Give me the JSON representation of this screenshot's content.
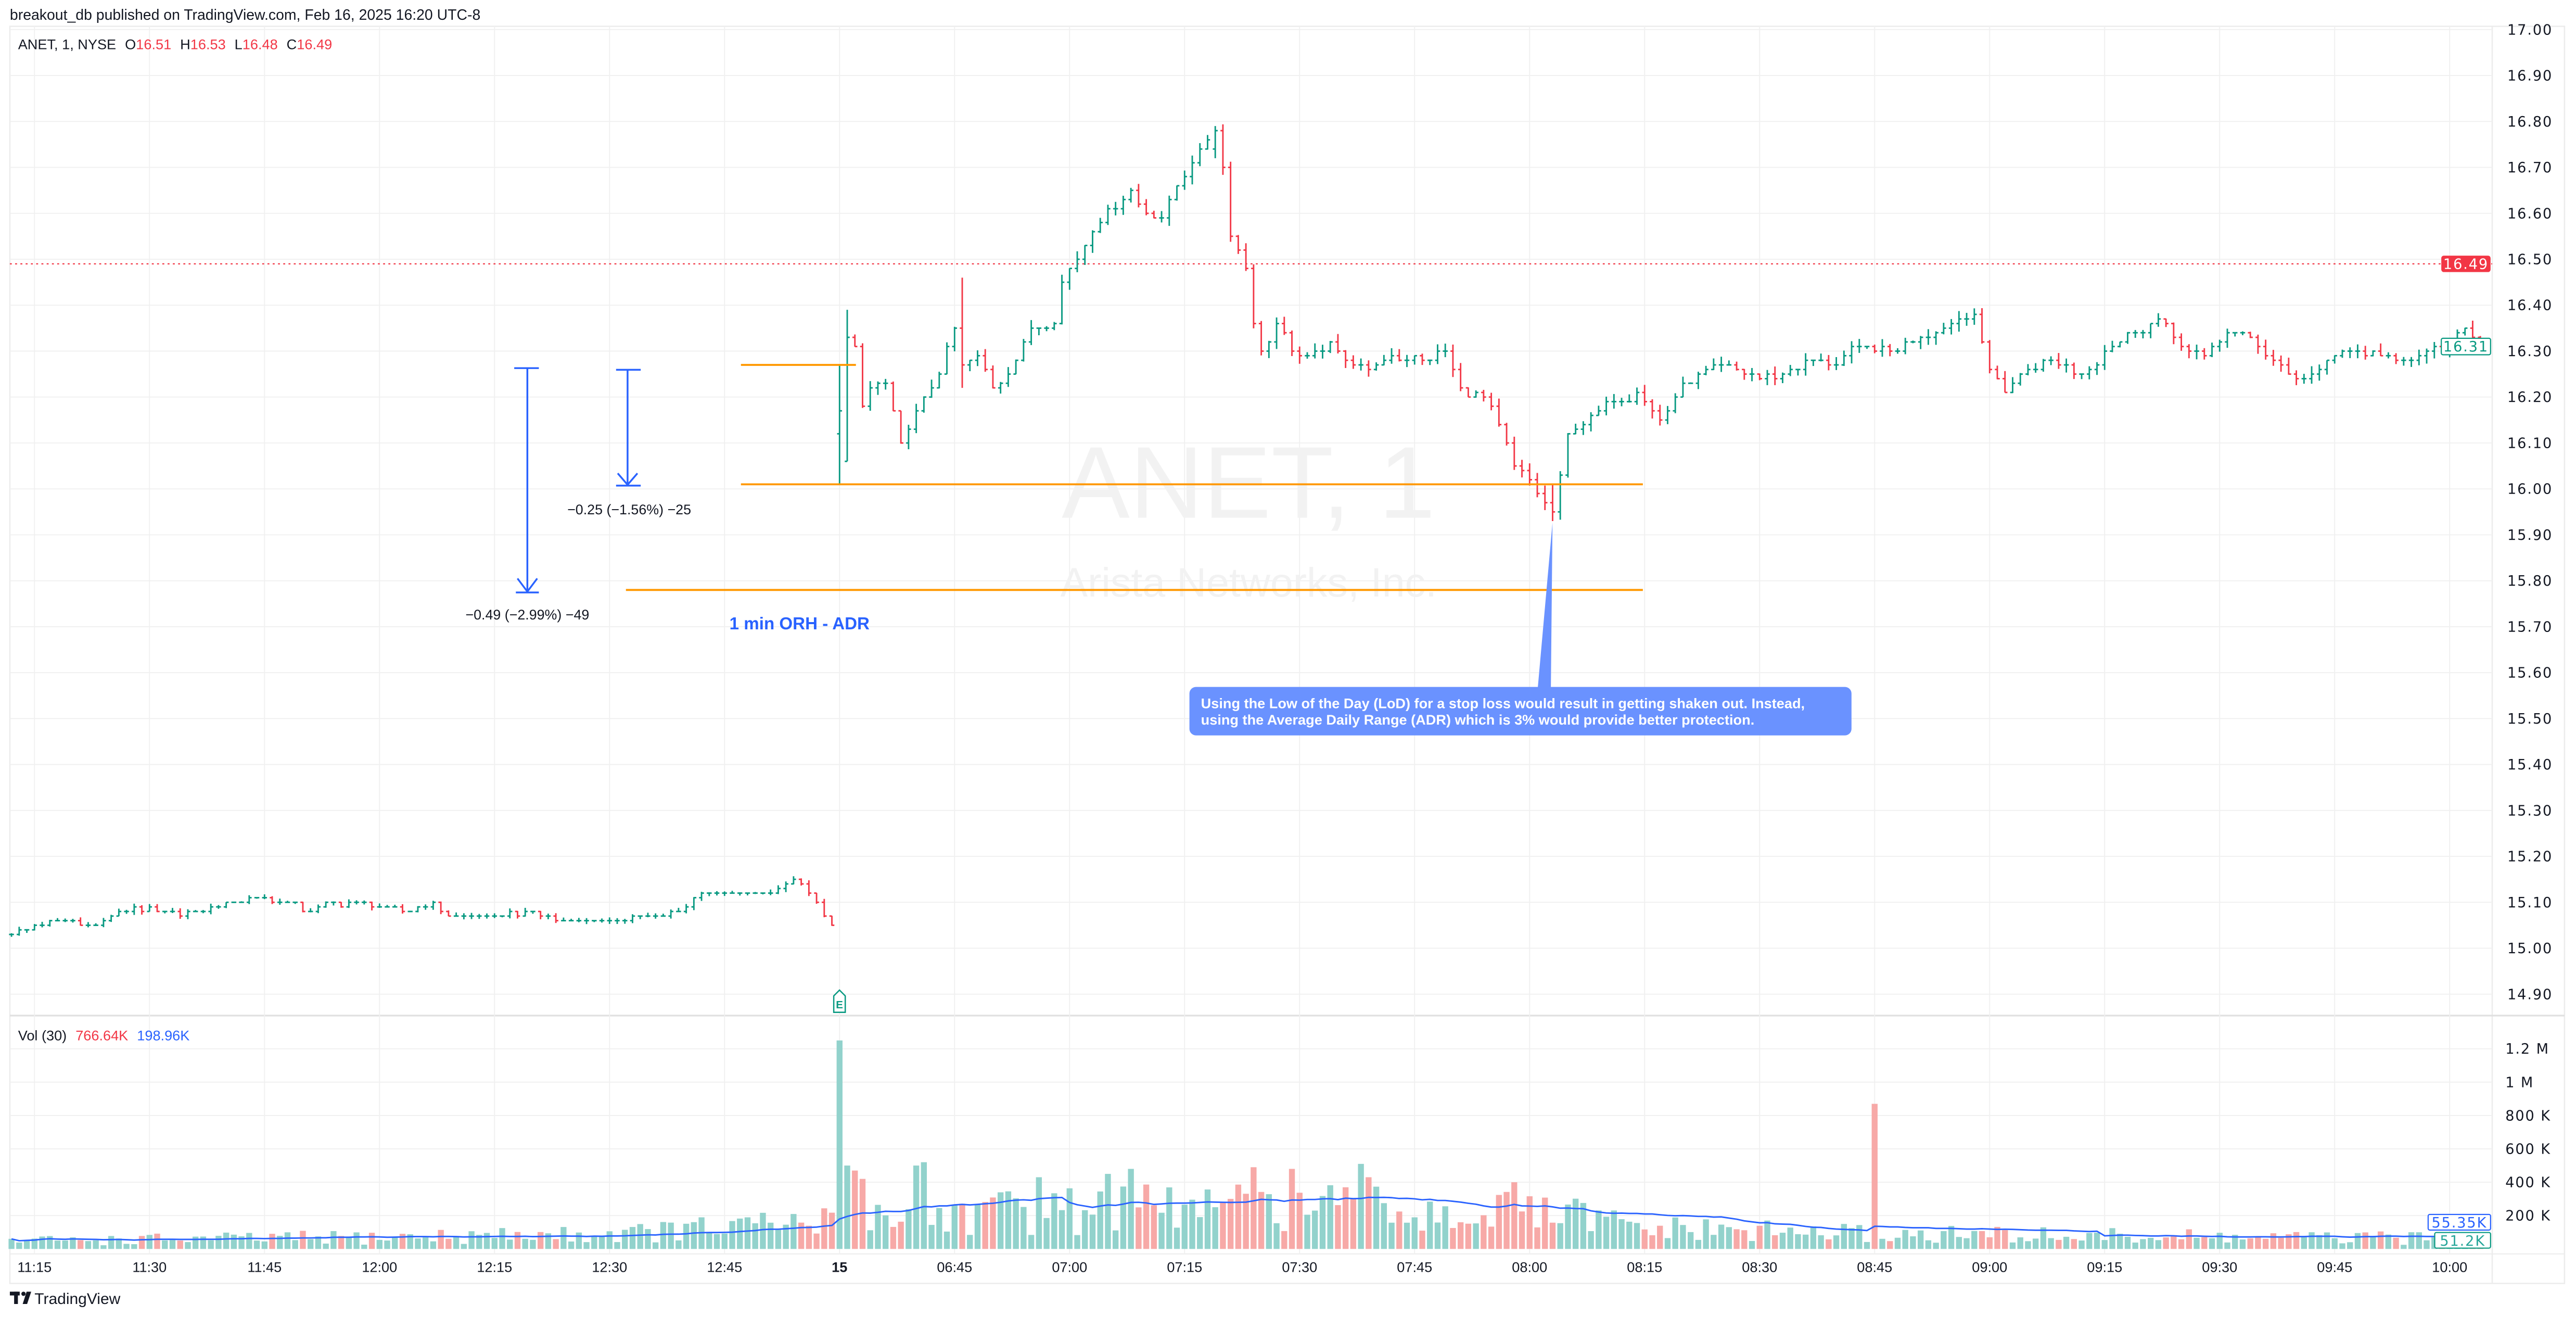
{
  "header": {
    "published": "breakout_db published on TradingView.com, Feb 16, 2025 16:20 UTC-8"
  },
  "legend": {
    "symbol": "ANET, 1, NYSE",
    "o_label": "O",
    "o": "16.51",
    "h_label": "H",
    "h": "16.53",
    "l_label": "L",
    "l": "16.48",
    "c_label": "C",
    "c": "16.49"
  },
  "watermark": {
    "symbol": "ANET, 1",
    "name": "Arista Networks, Inc."
  },
  "volume_legend": {
    "label": "Vol (30)",
    "value": "766.64K",
    "ma": "198.96K"
  },
  "price_labels": {
    "last": "16.49",
    "current": "16.31"
  },
  "volume_labels": {
    "ma": "55.35K",
    "current": "51.2K"
  },
  "annotations": {
    "measure_short": "−0.25 (−1.56%) −25",
    "measure_long": "−0.49 (−2.99%) −49",
    "orh_adr_label": "1 min ORH - ADR",
    "callout": [
      "Using the Low of the Day (LoD) for a stop loss would result in getting shaken out. Instead,",
      "using the Average Daily Range (ADR) which is 3% would provide better protection."
    ],
    "earnings_marker": "E"
  },
  "footer": {
    "brand": "TradingView"
  },
  "colors": {
    "up": "#089981",
    "down": "#F23645",
    "vol_up": "#92D2CC",
    "vol_down": "#F7A9A7",
    "vol_ma": "#2962FF",
    "level_line": "#FF9800",
    "measure": "#2962FF",
    "callout_bg": "#6A92FF"
  },
  "chart_data": {
    "type": "ohlc",
    "symbol": "ANET",
    "interval": "1",
    "exchange": "NYSE",
    "y_ticks": [
      "17.00",
      "16.90",
      "16.80",
      "16.70",
      "16.60",
      "16.50",
      "16.40",
      "16.30",
      "16.20",
      "16.10",
      "16.00",
      "15.90",
      "15.80",
      "15.70",
      "15.60",
      "15.50",
      "15.40",
      "15.30",
      "15.20",
      "15.10",
      "15.00",
      "14.90"
    ],
    "ylim": [
      14.9,
      17.0
    ],
    "x_ticks": [
      {
        "t": "11:15",
        "label": "11:15"
      },
      {
        "t": "11:30",
        "label": "11:30"
      },
      {
        "t": "11:45",
        "label": "11:45"
      },
      {
        "t": "12:00",
        "label": "12:00"
      },
      {
        "t": "12:15",
        "label": "12:15"
      },
      {
        "t": "12:30",
        "label": "12:30"
      },
      {
        "t": "12:45",
        "label": "12:45"
      },
      {
        "t": "06:30",
        "label": "15",
        "bold": true
      },
      {
        "t": "06:45",
        "label": "06:45"
      },
      {
        "t": "07:00",
        "label": "07:00"
      },
      {
        "t": "07:15",
        "label": "07:15"
      },
      {
        "t": "07:30",
        "label": "07:30"
      },
      {
        "t": "07:45",
        "label": "07:45"
      },
      {
        "t": "08:00",
        "label": "08:00"
      },
      {
        "t": "08:15",
        "label": "08:15"
      },
      {
        "t": "08:30",
        "label": "08:30"
      },
      {
        "t": "08:45",
        "label": "08:45"
      },
      {
        "t": "09:00",
        "label": "09:00"
      },
      {
        "t": "09:15",
        "label": "09:15"
      },
      {
        "t": "09:30",
        "label": "09:30"
      },
      {
        "t": "09:45",
        "label": "09:45"
      },
      {
        "t": "10:00",
        "label": "10:00"
      }
    ],
    "close_path": [
      [
        "11:12",
        15.03
      ],
      [
        "11:17",
        15.06
      ],
      [
        "11:23",
        15.05
      ],
      [
        "11:28",
        15.09
      ],
      [
        "11:31",
        15.08
      ],
      [
        "11:34",
        15.07
      ],
      [
        "11:38",
        15.09
      ],
      [
        "11:43",
        15.11
      ],
      [
        "11:48",
        15.1
      ],
      [
        "11:51",
        15.08
      ],
      [
        "11:54",
        15.1
      ],
      [
        "12:00",
        15.09
      ],
      [
        "12:03",
        15.08
      ],
      [
        "12:07",
        15.1
      ],
      [
        "12:09",
        15.07
      ],
      [
        "12:15",
        15.07
      ],
      [
        "12:19",
        15.08
      ],
      [
        "12:23",
        15.06
      ],
      [
        "12:30",
        15.06
      ],
      [
        "12:36",
        15.07
      ],
      [
        "12:39",
        15.08
      ],
      [
        "12:42",
        15.12
      ],
      [
        "12:46",
        15.12
      ],
      [
        "12:51",
        15.12
      ],
      [
        "12:54",
        15.15
      ],
      [
        "12:56",
        15.12
      ],
      [
        "12:59",
        15.05
      ],
      [
        "06:30",
        16.17
      ],
      [
        "06:31",
        16.33
      ],
      [
        "06:32",
        16.31
      ],
      [
        "06:33",
        16.18
      ],
      [
        "06:34",
        16.22
      ],
      [
        "06:36",
        16.23
      ],
      [
        "06:38",
        16.1
      ],
      [
        "06:39",
        16.13
      ],
      [
        "06:41",
        16.2
      ],
      [
        "06:43",
        16.25
      ],
      [
        "06:45",
        16.35
      ],
      [
        "06:46",
        16.27
      ],
      [
        "06:48",
        16.29
      ],
      [
        "06:50",
        16.22
      ],
      [
        "06:52",
        16.25
      ],
      [
        "06:55",
        16.35
      ],
      [
        "06:58",
        16.36
      ],
      [
        "06:59",
        16.45
      ],
      [
        "07:01",
        16.5
      ],
      [
        "07:03",
        16.56
      ],
      [
        "07:05",
        16.61
      ],
      [
        "07:08",
        16.65
      ],
      [
        "07:10",
        16.6
      ],
      [
        "07:12",
        16.59
      ],
      [
        "07:14",
        16.66
      ],
      [
        "07:16",
        16.71
      ],
      [
        "07:18",
        16.76
      ],
      [
        "07:19",
        16.78
      ],
      [
        "07:20",
        16.7
      ],
      [
        "07:21",
        16.55
      ],
      [
        "07:23",
        16.48
      ],
      [
        "07:24",
        16.36
      ],
      [
        "07:25",
        16.3
      ],
      [
        "07:27",
        16.36
      ],
      [
        "07:29",
        16.3
      ],
      [
        "07:31",
        16.29
      ],
      [
        "07:34",
        16.32
      ],
      [
        "07:36",
        16.28
      ],
      [
        "07:39",
        16.26
      ],
      [
        "07:42",
        16.29
      ],
      [
        "07:46",
        16.28
      ],
      [
        "07:49",
        16.3
      ],
      [
        "07:51",
        16.22
      ],
      [
        "07:54",
        16.2
      ],
      [
        "07:57",
        16.1
      ],
      [
        "07:58",
        16.05
      ],
      [
        "08:00",
        16.02
      ],
      [
        "08:02",
        15.97
      ],
      [
        "08:03",
        15.95
      ],
      [
        "08:04",
        16.03
      ],
      [
        "08:05",
        16.12
      ],
      [
        "08:08",
        16.16
      ],
      [
        "08:11",
        16.19
      ],
      [
        "08:14",
        16.21
      ],
      [
        "08:17",
        16.15
      ],
      [
        "08:19",
        16.2
      ],
      [
        "08:22",
        16.25
      ],
      [
        "08:26",
        16.27
      ],
      [
        "08:30",
        16.24
      ],
      [
        "08:33",
        16.25
      ],
      [
        "08:37",
        16.28
      ],
      [
        "08:40",
        16.27
      ],
      [
        "08:43",
        16.31
      ],
      [
        "08:47",
        16.3
      ],
      [
        "08:51",
        16.33
      ],
      [
        "08:55",
        16.36
      ],
      [
        "08:58",
        16.38
      ],
      [
        "09:00",
        16.26
      ],
      [
        "09:02",
        16.21
      ],
      [
        "09:05",
        16.26
      ],
      [
        "09:08",
        16.28
      ],
      [
        "09:12",
        16.25
      ],
      [
        "09:15",
        16.3
      ],
      [
        "09:19",
        16.34
      ],
      [
        "09:22",
        16.37
      ],
      [
        "09:25",
        16.31
      ],
      [
        "09:28",
        16.29
      ],
      [
        "09:31",
        16.34
      ],
      [
        "09:34",
        16.33
      ],
      [
        "09:37",
        16.28
      ],
      [
        "09:40",
        16.24
      ],
      [
        "09:43",
        16.26
      ],
      [
        "09:46",
        16.3
      ],
      [
        "09:51",
        16.29
      ],
      [
        "09:56",
        16.29
      ],
      [
        "10:00",
        16.31
      ],
      [
        "10:02",
        16.35
      ],
      [
        "10:04",
        16.31
      ]
    ],
    "bar_overrides": [
      {
        "t": "06:30",
        "o": 16.12,
        "h": 16.27,
        "l": 16.01,
        "c": 16.17
      },
      {
        "t": "06:31",
        "o": 16.06,
        "h": 16.39,
        "l": 16.06,
        "c": 16.33
      },
      {
        "t": "06:46",
        "o": 16.35,
        "h": 16.46,
        "l": 16.22,
        "c": 16.27
      },
      {
        "t": "07:19",
        "o": 16.74,
        "h": 16.79,
        "l": 16.72,
        "c": 16.78
      },
      {
        "t": "08:03",
        "o": 15.97,
        "h": 16.01,
        "l": 15.93,
        "c": 15.95
      }
    ],
    "volume": {
      "ylim": [
        0,
        1250000
      ],
      "y_ticks": [
        {
          "v": 1200000,
          "label": "1.2 M"
        },
        {
          "v": 1000000,
          "label": "1 M"
        },
        {
          "v": 800000,
          "label": "800 K"
        },
        {
          "v": 600000,
          "label": "600 K"
        },
        {
          "v": 400000,
          "label": "400 K"
        },
        {
          "v": 200000,
          "label": "200 K"
        }
      ],
      "ma_length": 30,
      "base_path": [
        [
          "11:12",
          50000
        ],
        [
          "12:00",
          70000
        ],
        [
          "12:30",
          90000
        ],
        [
          "12:59",
          160000
        ],
        [
          "06:34",
          200000
        ],
        [
          "07:00",
          230000
        ],
        [
          "07:30",
          250000
        ],
        [
          "07:50",
          220000
        ],
        [
          "08:05",
          200000
        ],
        [
          "08:15",
          120000
        ],
        [
          "08:45",
          90000
        ],
        [
          "09:30",
          70000
        ],
        [
          "10:04",
          60000
        ]
      ],
      "spikes": [
        [
          "06:30",
          1250000
        ],
        [
          "06:31",
          500000
        ],
        [
          "06:32",
          470000
        ],
        [
          "06:33",
          420000
        ],
        [
          "06:40",
          500000
        ],
        [
          "06:41",
          520000
        ],
        [
          "06:56",
          430000
        ],
        [
          "07:05",
          450000
        ],
        [
          "07:08",
          480000
        ],
        [
          "07:21",
          300000
        ],
        [
          "07:24",
          490000
        ],
        [
          "07:29",
          480000
        ],
        [
          "07:38",
          510000
        ],
        [
          "07:39",
          430000
        ],
        [
          "07:58",
          400000
        ],
        [
          "08:45",
          870000
        ],
        [
          "10:04",
          51200
        ]
      ]
    },
    "levels": [
      {
        "name": "1 min ORH",
        "price": 16.27
      },
      {
        "name": "LoD line",
        "price": 16.01
      },
      {
        "name": "ADR stop",
        "price": 15.78
      }
    ],
    "last_price": 16.49,
    "current_price": 16.31
  }
}
